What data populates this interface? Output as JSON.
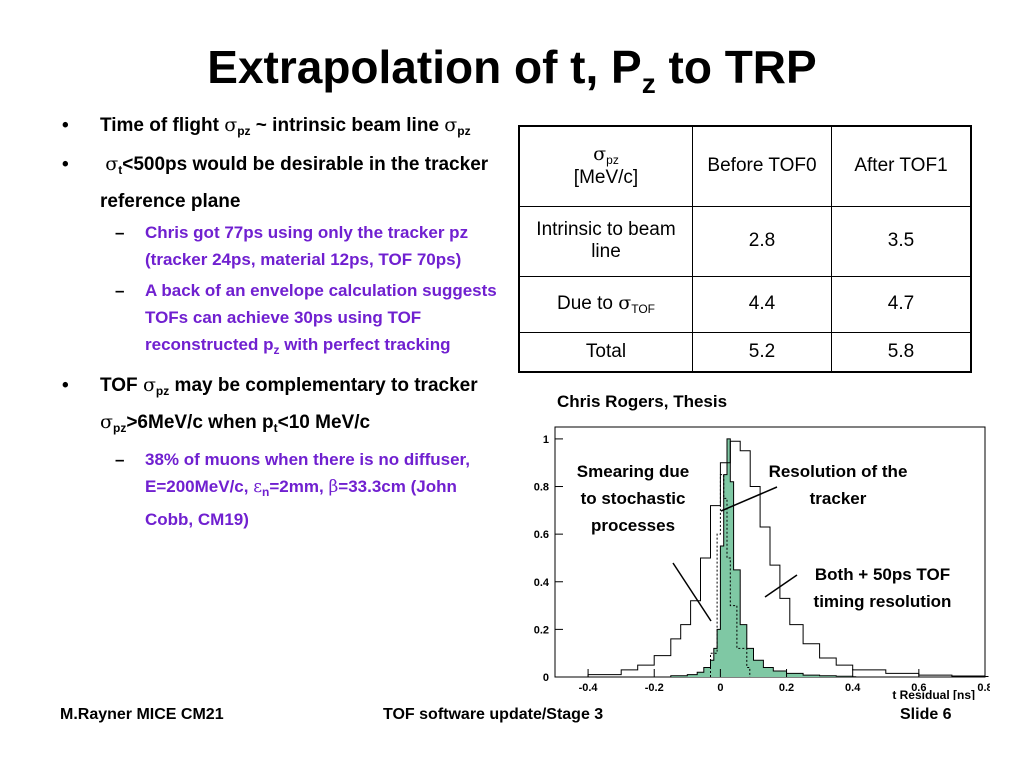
{
  "title": {
    "main": "Extrapolation of t, P",
    "sub": "z",
    "tail": " to TRP"
  },
  "sigma": "σ",
  "bullets": {
    "b1": {
      "a": "Time of flight ",
      "pz": "pz",
      "b": " ~ intrinsic beam line "
    },
    "b2": {
      "t": "t",
      "a": "<500ps would be desirable in the tracker reference plane"
    },
    "s1": "Chris got 77ps using only the tracker pz (tracker 24ps, material 12ps, TOF 70ps)",
    "s2": {
      "a": "A back of an envelope calculation suggests TOFs can achieve 30ps using TOF reconstructed p",
      "z": "z",
      "b": " with perfect tracking"
    },
    "b3": {
      "a": "TOF ",
      "b": " may be complementary to tracker ",
      "c": ">6MeV/c when p",
      "t": "t",
      "d": "<10 MeV/c"
    },
    "s3": {
      "a": "38% of muons when there is no diffuser, E=200MeV/c, ",
      "eps": "ε",
      "n": "n",
      "b": "=2mm, ",
      "beta": "β",
      "c": "=33.3cm (John Cobb, CM19)"
    }
  },
  "table": {
    "header": {
      "unit": "[MeV/c]",
      "before": "Before TOF0",
      "after": "After TOF1"
    },
    "rows": [
      {
        "label": "Intrinsic to beam line",
        "before": "2.8",
        "after": "3.5"
      },
      {
        "label_a": "Due to ",
        "label_sub": "TOF",
        "before": "4.4",
        "after": "4.7"
      },
      {
        "label": "Total",
        "before": "5.2",
        "after": "5.8"
      }
    ]
  },
  "figure": {
    "credit": "Chris Rogers, Thesis",
    "xlabel": "t Residual [ns]",
    "annotations": {
      "smearing": "Smearing due to stochastic processes",
      "resolution": "Resolution of the tracker",
      "both": "Both + 50ps TOF timing resolution"
    }
  },
  "chart_data": {
    "type": "histogram",
    "xlabel": "t Residual [ns]",
    "xlim": [
      -0.5,
      0.8
    ],
    "ylim": [
      0,
      1.05
    ],
    "xticks": [
      "-0.4",
      "-0.2",
      "0",
      "0.2",
      "0.4",
      "0.6",
      "0.8"
    ],
    "yticks": [
      "0",
      "0.2",
      "0.4",
      "0.6",
      "0.8",
      "1"
    ],
    "series": [
      {
        "x": [
          -0.15,
          -0.1,
          -0.07,
          -0.05,
          -0.03,
          -0.02,
          -0.01,
          0,
          0.01,
          0.02,
          0.03,
          0.04,
          0.06,
          0.08,
          0.1,
          0.13,
          0.16,
          0.2,
          0.25,
          0.3,
          0.35,
          0.4
        ],
        "y": [
          0.005,
          0.01,
          0.02,
          0.04,
          0.07,
          0.12,
          0.2,
          0.55,
          0.85,
          1.0,
          0.82,
          0.45,
          0.22,
          0.12,
          0.07,
          0.04,
          0.025,
          0.015,
          0.008,
          0.005,
          0.003,
          0.001
        ]
      },
      {
        "x": [
          -0.4,
          -0.3,
          -0.25,
          -0.2,
          -0.15,
          -0.12,
          -0.09,
          -0.06,
          -0.03,
          0,
          0.03,
          0.06,
          0.09,
          0.12,
          0.15,
          0.18,
          0.21,
          0.25,
          0.3,
          0.35,
          0.4,
          0.5,
          0.6,
          0.7,
          0.8
        ],
        "y": [
          0.01,
          0.03,
          0.05,
          0.09,
          0.16,
          0.22,
          0.32,
          0.5,
          0.72,
          0.9,
          0.99,
          0.95,
          0.8,
          0.63,
          0.47,
          0.33,
          0.22,
          0.14,
          0.08,
          0.05,
          0.03,
          0.015,
          0.008,
          0.004,
          0.002
        ]
      },
      {
        "x": [
          -0.03,
          -0.01,
          0,
          0.01,
          0.02,
          0.03,
          0.05,
          0.08
        ],
        "y": [
          0.1,
          0.6,
          0.85,
          0.75,
          0.5,
          0.3,
          0.12,
          0.04
        ]
      }
    ]
  },
  "footer": {
    "left": "M.Rayner MICE CM21",
    "center": "TOF software update/Stage 3",
    "right": "Slide 6"
  }
}
